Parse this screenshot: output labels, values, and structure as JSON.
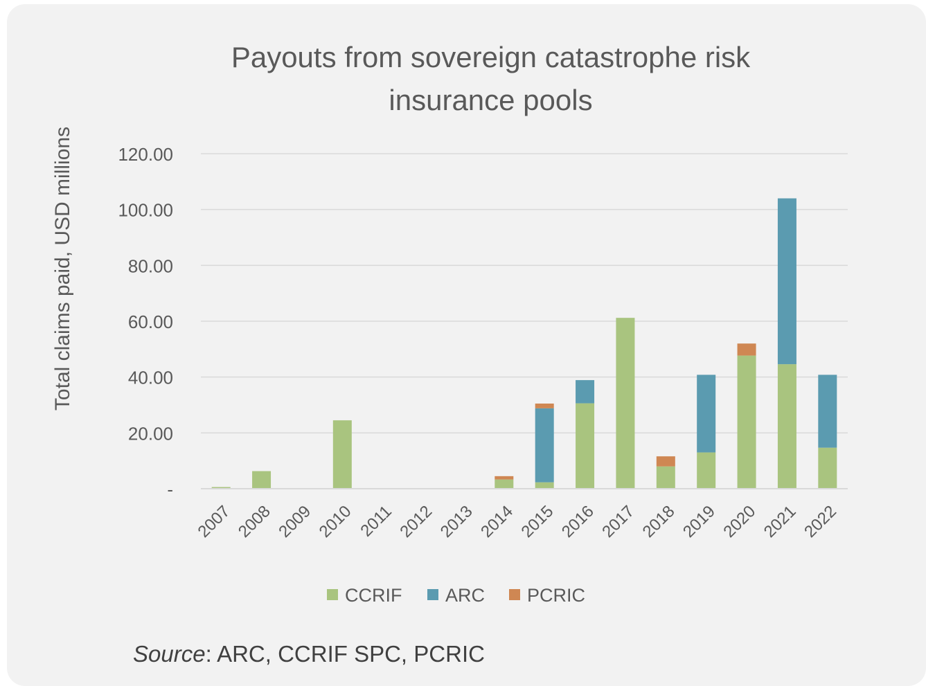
{
  "chart_data": {
    "type": "bar",
    "stacked": true,
    "title": "Payouts from sovereign catastrophe risk insurance pools",
    "title_lines": [
      "Payouts from sovereign catastrophe risk",
      "insurance pools"
    ],
    "xlabel": "",
    "ylabel": "Total claims paid, USD millions",
    "ylim": [
      0,
      120
    ],
    "yticks": [
      {
        "value": 0,
        "label": "-"
      },
      {
        "value": 20,
        "label": "20.00"
      },
      {
        "value": 40,
        "label": "40.00"
      },
      {
        "value": 60,
        "label": "60.00"
      },
      {
        "value": 80,
        "label": "80.00"
      },
      {
        "value": 100,
        "label": "100.00"
      },
      {
        "value": 120,
        "label": "120.00"
      }
    ],
    "grid": true,
    "legend_position": "bottom",
    "categories": [
      "2007",
      "2008",
      "2009",
      "2010",
      "2011",
      "2012",
      "2013",
      "2014",
      "2015",
      "2016",
      "2017",
      "2018",
      "2019",
      "2020",
      "2021",
      "2022"
    ],
    "series": [
      {
        "name": "CCRIF",
        "color": "#a9c47f",
        "values": [
          0.6,
          6.3,
          0,
          24.5,
          0,
          0,
          0,
          3.3,
          2.3,
          30.6,
          61.2,
          8.0,
          13.0,
          47.7,
          44.6,
          14.7
        ]
      },
      {
        "name": "ARC",
        "color": "#5b9bb0",
        "values": [
          0,
          0,
          0,
          0,
          0,
          0,
          0,
          0,
          26.5,
          8.3,
          0,
          0,
          27.8,
          0,
          59.4,
          26.1
        ]
      },
      {
        "name": "PCRIC",
        "color": "#cf8753",
        "values": [
          0,
          0,
          0,
          0,
          0,
          0,
          0,
          1.2,
          1.7,
          0,
          0,
          3.6,
          0,
          4.3,
          0,
          0
        ]
      }
    ]
  },
  "source": {
    "label": "Source",
    "text": ": ARC, CCRIF SPC, PCRIC"
  }
}
